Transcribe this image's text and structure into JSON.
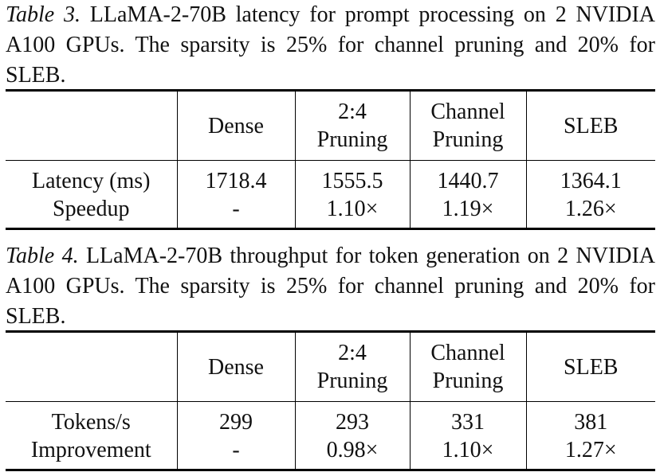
{
  "tables": [
    {
      "label": "Table 3.",
      "caption": "LLaMA-2-70B latency for prompt processing on 2 NVIDIA A100 GPUs. The sparsity is 25% for channel pruning and 20% for SLEB.",
      "header": [
        [
          "Dense"
        ],
        [
          "2:4",
          "Pruning"
        ],
        [
          "Channel",
          "Pruning"
        ],
        [
          "SLEB"
        ]
      ],
      "rows": [
        {
          "label": "Latency (ms)",
          "cells": [
            "1718.4",
            "1555.5",
            "1440.7",
            "1364.1"
          ]
        },
        {
          "label": "Speedup",
          "cells": [
            "-",
            "1.10×",
            "1.19×",
            "1.26×"
          ]
        }
      ]
    },
    {
      "label": "Table 4.",
      "caption": "LLaMA-2-70B throughput for token generation on 2 NVIDIA A100 GPUs. The sparsity is 25% for channel pruning and 20% for SLEB.",
      "header": [
        [
          "Dense"
        ],
        [
          "2:4",
          "Pruning"
        ],
        [
          "Channel",
          "Pruning"
        ],
        [
          "SLEB"
        ]
      ],
      "rows": [
        {
          "label": "Tokens/s",
          "cells": [
            "299",
            "293",
            "331",
            "381"
          ]
        },
        {
          "label": "Improvement",
          "cells": [
            "-",
            "0.98×",
            "1.10×",
            "1.27×"
          ]
        }
      ]
    }
  ]
}
